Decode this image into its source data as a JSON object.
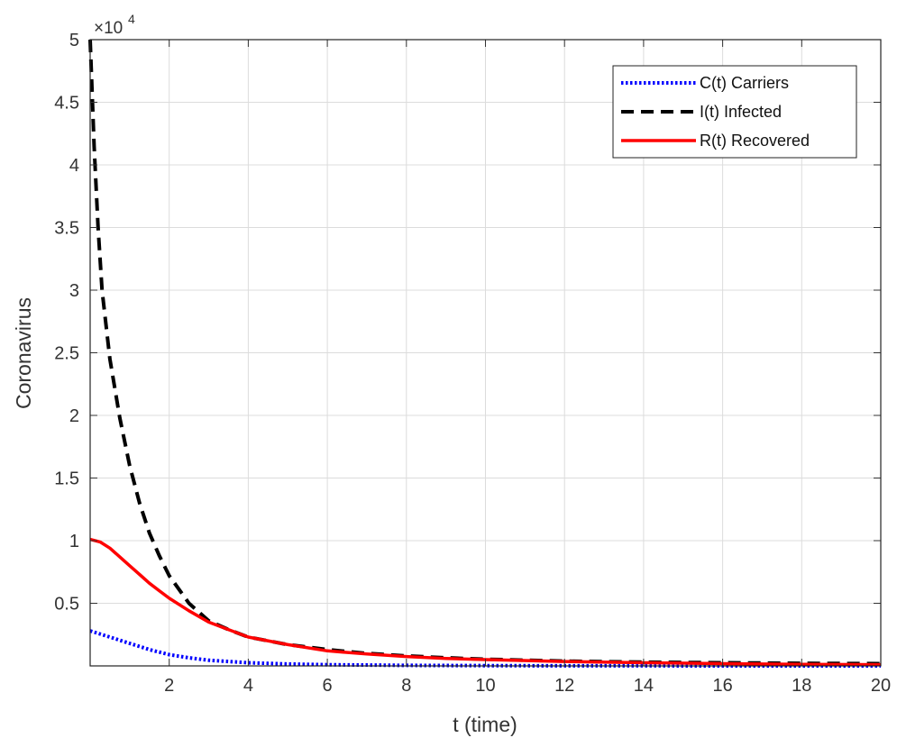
{
  "chart_data": {
    "type": "line",
    "title": "",
    "xlabel": "t (time)",
    "ylabel": "Coronavirus",
    "xlim": [
      0,
      20
    ],
    "ylim": [
      0,
      50000
    ],
    "grid": true,
    "legend_position": "top-right",
    "y_exponent": {
      "prefix": "×10",
      "power": "4"
    },
    "x_ticks": [
      2,
      4,
      6,
      8,
      10,
      12,
      14,
      16,
      18,
      20
    ],
    "x_tick_labels": [
      "2",
      "4",
      "6",
      "8",
      "10",
      "12",
      "14",
      "16",
      "18",
      "20"
    ],
    "y_ticks": [
      5000,
      10000,
      15000,
      20000,
      25000,
      30000,
      35000,
      40000,
      45000,
      50000
    ],
    "y_tick_labels": [
      "0.5",
      "1",
      "1.5",
      "2",
      "2.5",
      "3",
      "3.5",
      "4",
      "4.5",
      "5"
    ],
    "series": [
      {
        "name": "C(t) Carriers",
        "color": "#0000ff",
        "style": "dotted",
        "x": [
          0,
          0.5,
          1,
          1.5,
          2,
          2.5,
          3,
          4,
          5,
          6,
          8,
          10,
          12,
          14,
          16,
          18,
          20
        ],
        "y": [
          2800,
          2300,
          1800,
          1300,
          900,
          650,
          450,
          250,
          150,
          90,
          40,
          20,
          10,
          5,
          3,
          2,
          1
        ]
      },
      {
        "name": "I(t) Infected",
        "color": "#000000",
        "style": "dashed",
        "x": [
          0,
          0.1,
          0.2,
          0.3,
          0.5,
          0.75,
          1,
          1.25,
          1.5,
          1.75,
          2,
          2.5,
          3,
          3.5,
          4,
          5,
          6,
          7,
          8,
          9,
          10,
          12,
          14,
          16,
          18,
          20
        ],
        "y": [
          50000,
          41500,
          35000,
          30000,
          24500,
          19800,
          16000,
          13000,
          10600,
          8800,
          7200,
          5000,
          3600,
          2900,
          2300,
          1700,
          1300,
          1000,
          800,
          650,
          530,
          380,
          300,
          250,
          210,
          180
        ]
      },
      {
        "name": "R(t) Recovered",
        "color": "#ff0000",
        "style": "solid",
        "x": [
          0,
          0.25,
          0.5,
          0.75,
          1,
          1.25,
          1.5,
          1.75,
          2,
          2.5,
          3,
          3.5,
          4,
          5,
          6,
          7,
          8,
          9,
          10,
          12,
          14,
          16,
          18,
          20
        ],
        "y": [
          10100,
          9900,
          9400,
          8700,
          8000,
          7300,
          6600,
          6000,
          5400,
          4400,
          3500,
          2900,
          2300,
          1700,
          1200,
          950,
          750,
          600,
          500,
          350,
          250,
          180,
          130,
          100
        ]
      }
    ]
  }
}
